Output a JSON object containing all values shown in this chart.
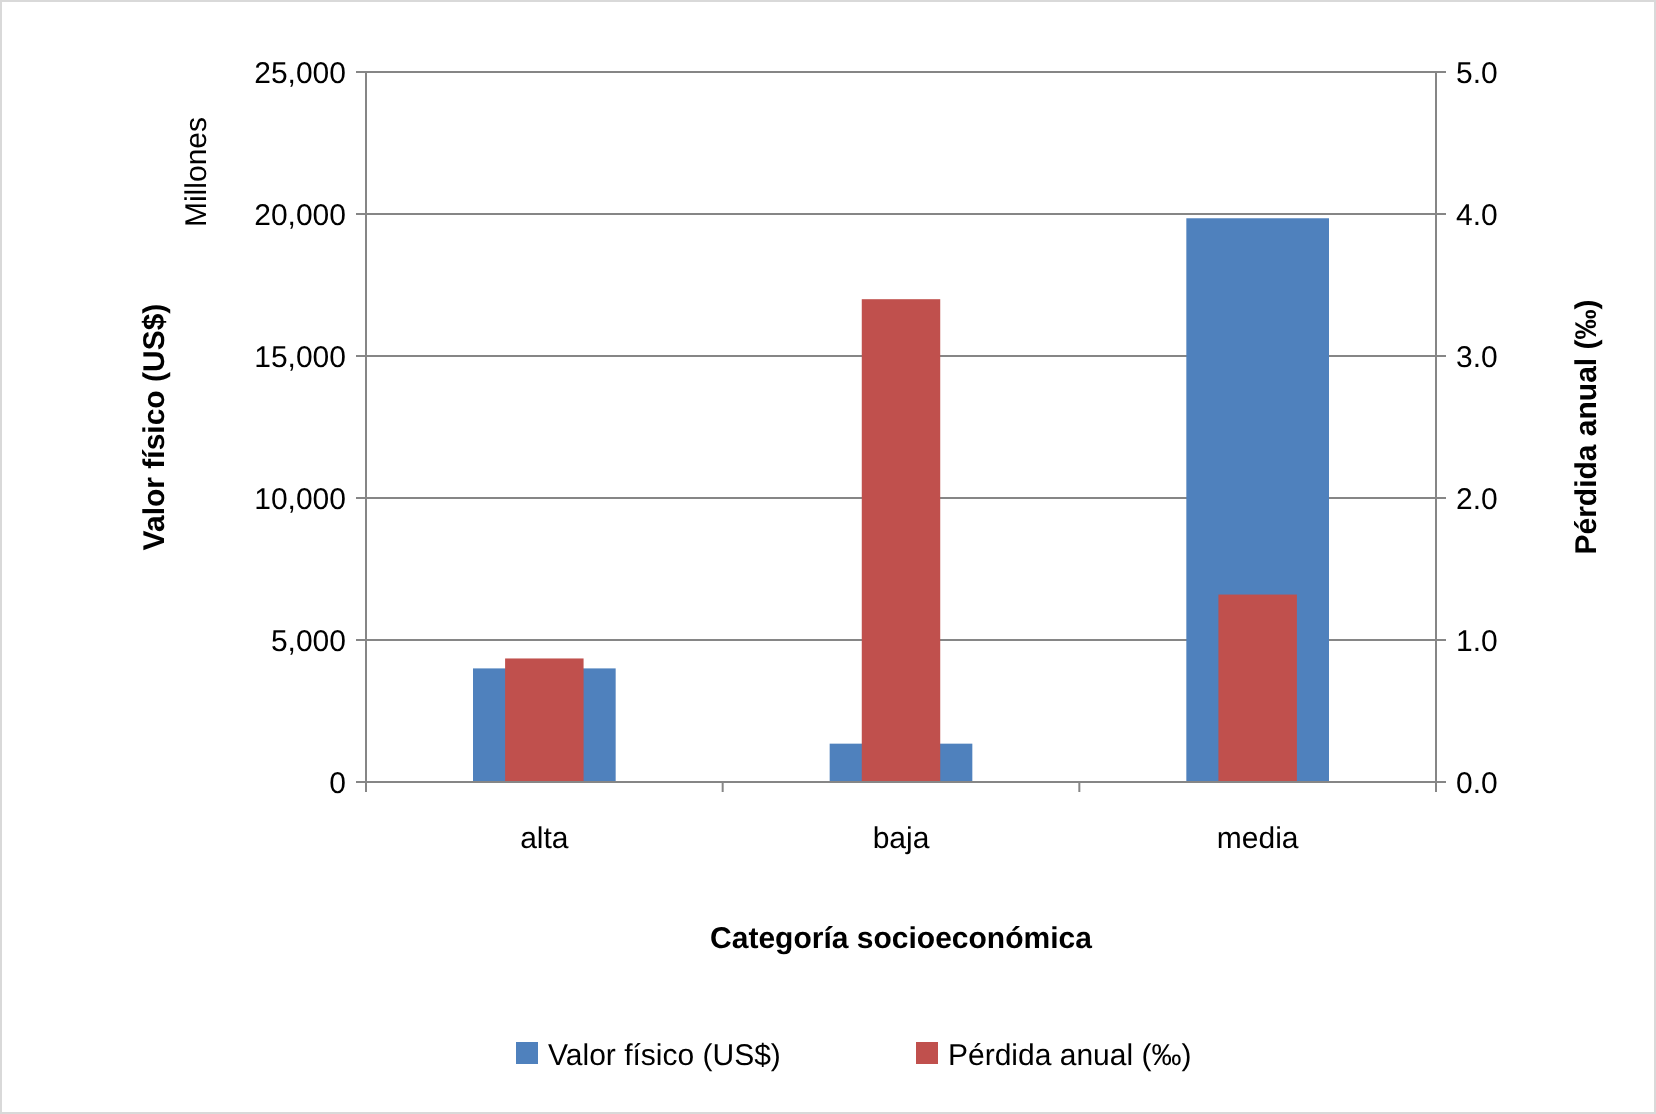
{
  "chart_data": {
    "type": "bar",
    "xlabel": "Categoría socioeconómica",
    "ylabel": "Valor físico (US$)",
    "y2label": "Pérdida anual (‰)",
    "annotations": [
      "Millones"
    ],
    "categories": [
      "alta",
      "baja",
      "media"
    ],
    "series": [
      {
        "name": "Valor físico (US$)",
        "color": "#4f81bd",
        "values": [
          4000,
          1350,
          19850
        ]
      },
      {
        "name": "Pérdida anual (‰)",
        "color": "#c0504d",
        "values": [
          0.87,
          3.4,
          1.32
        ],
        "axis": "y2"
      }
    ],
    "ylim": [
      0,
      25000
    ],
    "yticks": [
      {
        "value": 0,
        "label": "0"
      },
      {
        "value": 5000,
        "label": "5,000"
      },
      {
        "value": 10000,
        "label": "10,000"
      },
      {
        "value": 15000,
        "label": "15,000"
      },
      {
        "value": 20000,
        "label": "20,000"
      },
      {
        "value": 25000,
        "label": "25,000"
      }
    ],
    "y2lim": [
      0,
      5
    ],
    "y2ticks": [
      {
        "value": 0,
        "label": "0.0"
      },
      {
        "value": 1,
        "label": "1.0"
      },
      {
        "value": 2,
        "label": "2.0"
      },
      {
        "value": 3,
        "label": "3.0"
      },
      {
        "value": 4,
        "label": "4.0"
      },
      {
        "value": 5,
        "label": "5.0"
      }
    ],
    "grid": "y",
    "legend": "bottom"
  }
}
